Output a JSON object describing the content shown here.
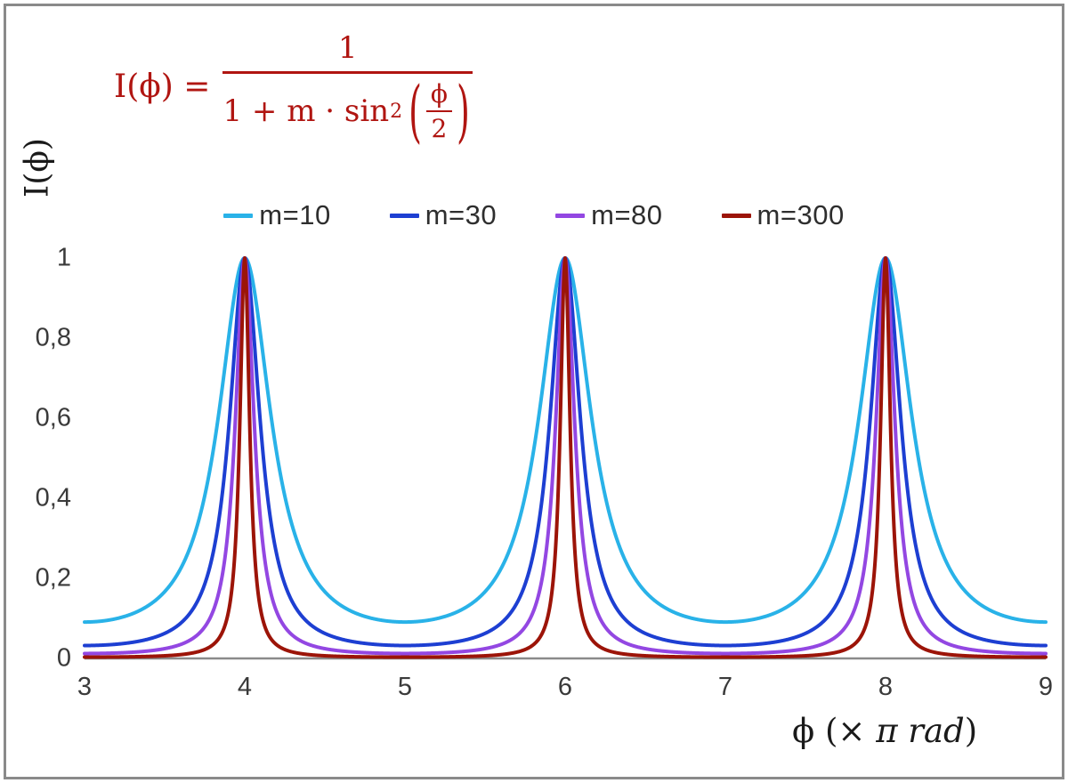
{
  "chart_data": {
    "type": "line",
    "title": "",
    "function": "I(phi) = 1 / (1 + m * sin^2(phi/2)), phi in units of pi rad",
    "formula": {
      "lhs": "I(ϕ) =",
      "numerator": "1",
      "den_prefix": "1 + m · sin",
      "den_sup": "2",
      "inner_num": "ϕ",
      "inner_den": "2"
    },
    "ylabel": "I(ϕ)",
    "xlabel": {
      "pre": "ϕ  (× ",
      "italic": "π rad",
      "post": ")"
    },
    "xlim": [
      3,
      9
    ],
    "ylim": [
      0,
      1
    ],
    "grid": false,
    "legend_position": "top-center",
    "x_ticks": [
      {
        "value": 3,
        "label": "3"
      },
      {
        "value": 4,
        "label": "4"
      },
      {
        "value": 5,
        "label": "5"
      },
      {
        "value": 6,
        "label": "6"
      },
      {
        "value": 7,
        "label": "7"
      },
      {
        "value": 8,
        "label": "8"
      },
      {
        "value": 9,
        "label": "9"
      }
    ],
    "y_ticks": [
      {
        "value": 0,
        "label": "0"
      },
      {
        "value": 0.2,
        "label": "0,2"
      },
      {
        "value": 0.4,
        "label": "0,4"
      },
      {
        "value": 0.6,
        "label": "0,6"
      },
      {
        "value": 0.8,
        "label": "0,8"
      },
      {
        "value": 1,
        "label": "1"
      }
    ],
    "series": [
      {
        "name": "m=10",
        "m": 10,
        "color": "#29b2e8"
      },
      {
        "name": "m=30",
        "m": 30,
        "color": "#1d3fd2"
      },
      {
        "name": "m=80",
        "m": 80,
        "color": "#9347e2"
      },
      {
        "name": "m=300",
        "m": 300,
        "color": "#9c1408"
      }
    ],
    "peaks_at_x": [
      4,
      6,
      8
    ],
    "peak_value": 1,
    "colors": {
      "formula": "#b01511",
      "axis": "#8a8a8a",
      "tick_text": "#3a3a3a",
      "frame_border": "#8a8a8a"
    }
  }
}
